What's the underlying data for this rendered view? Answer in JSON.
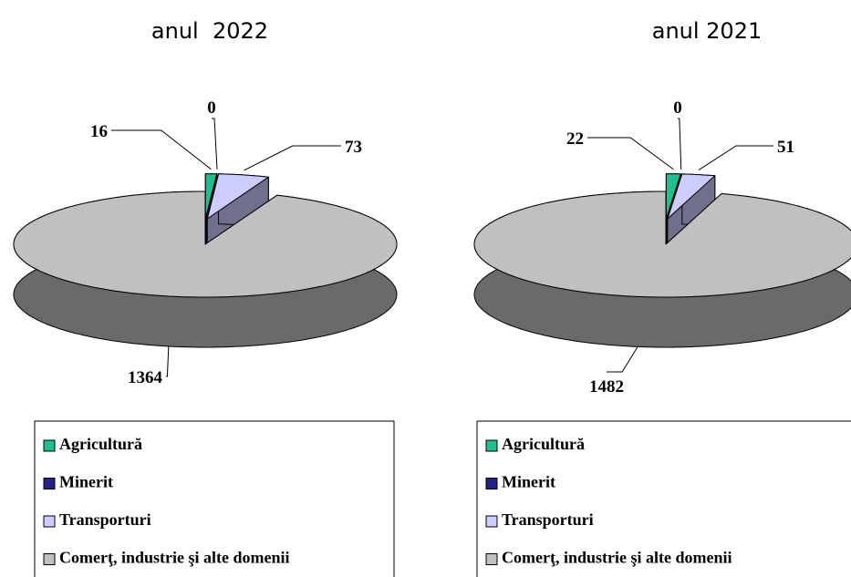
{
  "chart_data": [
    {
      "type": "pie",
      "title": "anul  2022",
      "categories": [
        "Agricultură",
        "Minerit",
        "Transporturi",
        "Comerţ, industrie şi alte domenii"
      ],
      "values": [
        16,
        0,
        73,
        1364
      ],
      "colors": [
        "#1fbf8f",
        "#22228a",
        "#ccccff",
        "#c0c0c0"
      ],
      "legend": "bottom"
    },
    {
      "type": "pie",
      "title": "anul 2021",
      "categories": [
        "Agricultură",
        "Minerit",
        "Transporturi",
        "Comerţ, industrie şi alte domenii"
      ],
      "values": [
        22,
        0,
        51,
        1482
      ],
      "colors": [
        "#1fbf8f",
        "#22228a",
        "#ccccff",
        "#c0c0c0"
      ],
      "legend": "bottom"
    }
  ]
}
